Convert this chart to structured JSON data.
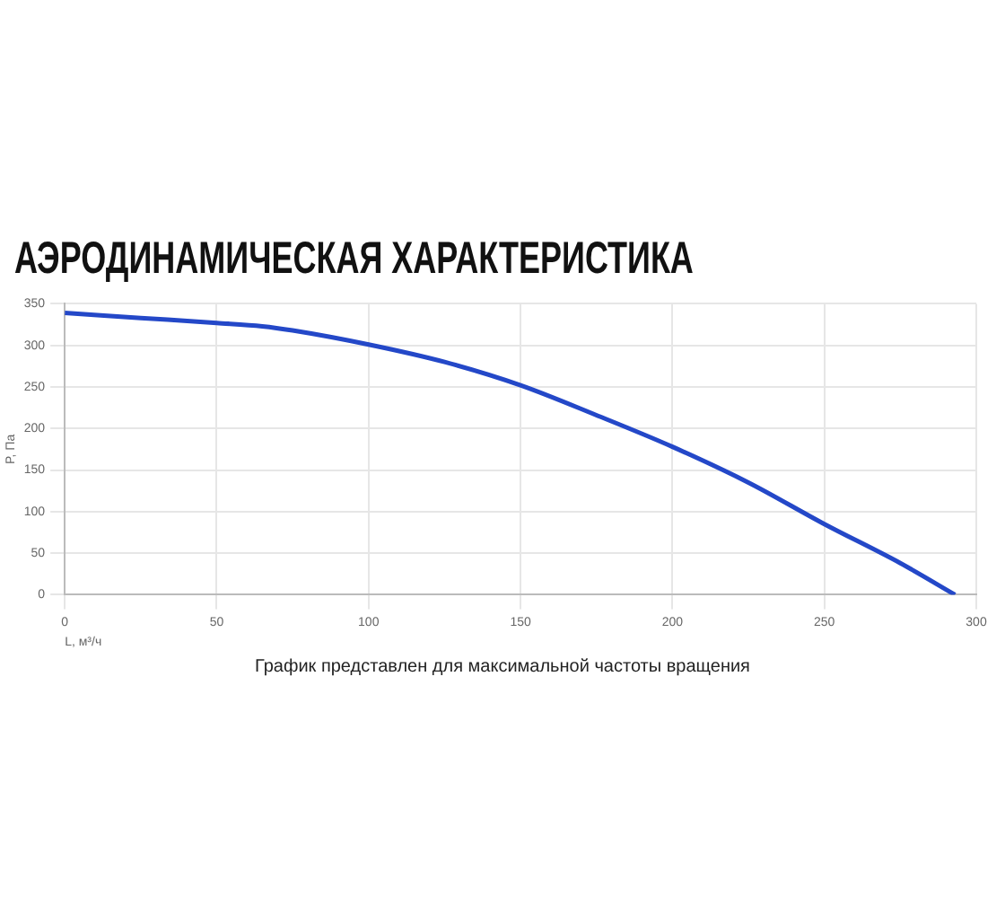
{
  "chart_data": {
    "type": "line",
    "title": "АЭРОДИНАМИЧЕСКАЯ ХАРАКТЕРИСТИКА",
    "xlabel": "L, м³/ч",
    "ylabel": "P, Па",
    "annotations": [
      "График представлен для максимальной частоты вращения"
    ],
    "x": [
      0,
      25,
      50,
      65,
      75,
      100,
      125,
      150,
      175,
      200,
      225,
      250,
      275,
      293
    ],
    "series": [
      {
        "color": "#2448c8",
        "values": [
          339,
          333,
          327,
          323,
          318,
          301,
          280,
          252,
          216,
          178,
          135,
          85,
          38,
          0
        ]
      }
    ],
    "xlim": [
      0,
      300
    ],
    "xticks": [
      0,
      50,
      100,
      150,
      200,
      250,
      300
    ],
    "ylim": [
      0,
      350
    ],
    "yticks": [
      0,
      50,
      100,
      150,
      200,
      250,
      300,
      350
    ],
    "grid": true,
    "legend": false,
    "marker": "none",
    "line_style": "solid"
  }
}
